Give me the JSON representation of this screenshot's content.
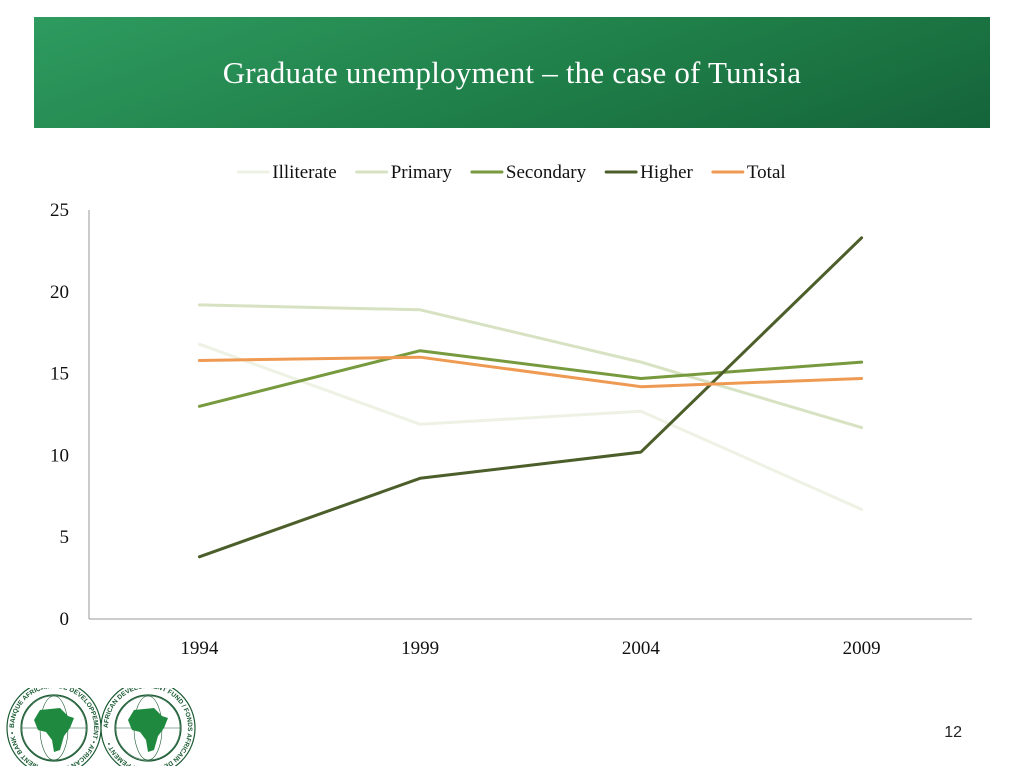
{
  "slide": {
    "title": "Graduate unemployment – the case of Tunisia",
    "page_number": "12"
  },
  "logos": {
    "left_ring_text": "BANQUE AFRICAINE DE DEVELOPPEMENT • AFRICAN DEVELOPMENT BANK •",
    "right_ring_text": "AFRICAN DEVELOPMENT FUND / FONDS AFRICAIN DE DEVELOPPEMENT •"
  },
  "chart_data": {
    "type": "line",
    "title": "",
    "xlabel": "",
    "ylabel": "",
    "categories": [
      "1994",
      "1999",
      "2004",
      "2009"
    ],
    "ylim": [
      0,
      25
    ],
    "yticks": [
      0,
      5,
      10,
      15,
      20,
      25
    ],
    "grid": false,
    "legend_position": "top",
    "series": [
      {
        "name": "Illiterate",
        "color": "#eef2e4",
        "values": [
          16.8,
          11.9,
          12.7,
          6.7
        ]
      },
      {
        "name": "Primary",
        "color": "#d7e2c2",
        "values": [
          19.2,
          18.9,
          15.7,
          11.7
        ]
      },
      {
        "name": "Secondary",
        "color": "#789a3e",
        "values": [
          13.0,
          16.4,
          14.7,
          15.7
        ]
      },
      {
        "name": "Higher",
        "color": "#4c5e2a",
        "values": [
          3.8,
          8.6,
          10.2,
          23.3
        ]
      },
      {
        "name": "Total",
        "color": "#ef9a53",
        "values": [
          15.8,
          16.0,
          14.2,
          14.7
        ]
      }
    ]
  }
}
